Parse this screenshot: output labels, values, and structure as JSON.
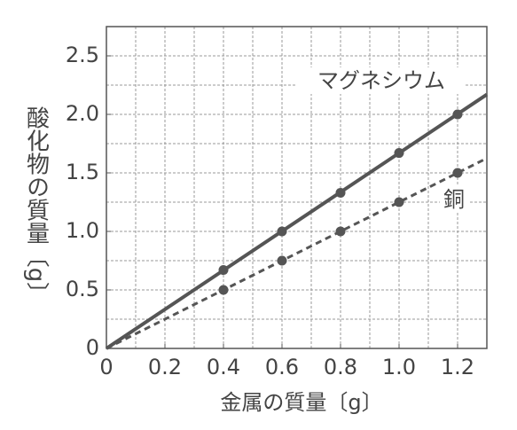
{
  "chart_data": {
    "type": "line",
    "x_label": "金属の質量〔g〕",
    "y_label": "酸化物の質量〔g〕",
    "xlim": [
      0,
      1.3
    ],
    "ylim": [
      0,
      2.75
    ],
    "xticks": [
      0,
      0.2,
      0.4,
      0.6,
      0.8,
      {
        "value": 1,
        "label": "1.0"
      },
      1.2
    ],
    "yticks": [
      0,
      0.5,
      {
        "value": 1,
        "label": "1.0"
      },
      1.5,
      {
        "value": 2,
        "label": "2.0"
      },
      2.5
    ],
    "xgrid": [
      0.1,
      0.2,
      0.3,
      0.4,
      0.5,
      0.6,
      0.7,
      0.8,
      0.9,
      1.0,
      1.1,
      1.2,
      1.3
    ],
    "ygrid": [
      0.25,
      0.5,
      0.75,
      1.0,
      1.25,
      1.5,
      1.75,
      2.0,
      2.25,
      2.5,
      2.75
    ],
    "series": [
      {
        "name": "マグネシウム",
        "color": "#555555",
        "dashed": false,
        "x": [
          0.4,
          0.6,
          0.8,
          1.0,
          1.2
        ],
        "values": [
          0.67,
          1.0,
          1.33,
          1.67,
          2.0
        ],
        "line": {
          "x": [
            0,
            1.3
          ],
          "values": [
            0,
            2.17
          ]
        }
      },
      {
        "name": "銅",
        "color": "#555555",
        "dashed": true,
        "x": [
          0.4,
          0.6,
          0.8,
          1.0,
          1.2
        ],
        "values": [
          0.5,
          0.75,
          1.0,
          1.25,
          1.5
        ],
        "line": {
          "x": [
            0,
            1.3
          ],
          "values": [
            0,
            1.625
          ]
        }
      }
    ]
  }
}
